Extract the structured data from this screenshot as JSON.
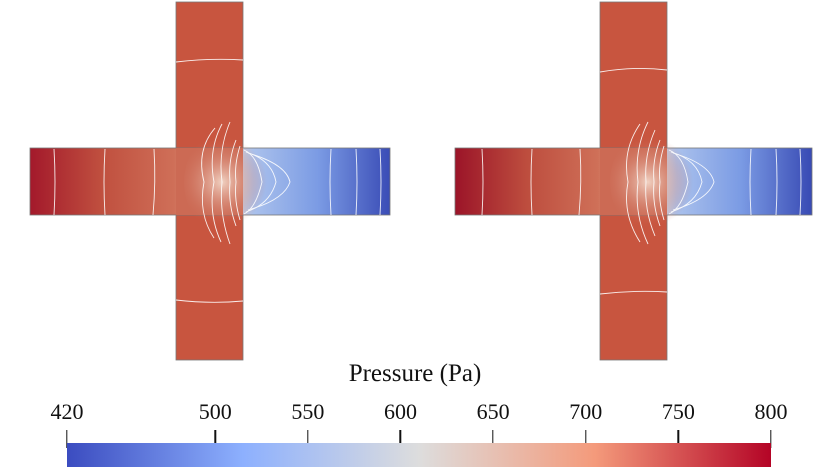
{
  "figure": {
    "panels": [
      {
        "name": "left-cross",
        "description": "pressure field in cross-shaped channel"
      },
      {
        "name": "right-cross",
        "description": "pressure field in cross-shaped channel"
      }
    ]
  },
  "colorbar": {
    "title": "Pressure (Pa)",
    "min": 420,
    "max": 800,
    "ticks": [
      {
        "value": 420,
        "label": "420"
      },
      {
        "value": 500,
        "label": "500"
      },
      {
        "value": 550,
        "label": "550"
      },
      {
        "value": 600,
        "label": "600"
      },
      {
        "value": 650,
        "label": "650"
      },
      {
        "value": 700,
        "label": "700"
      },
      {
        "value": 750,
        "label": "750"
      },
      {
        "value": 800,
        "label": "800"
      }
    ],
    "colors": {
      "low": "#3b4cc0",
      "low_mid": "#8db0fe",
      "mid": "#dddddd",
      "high_mid": "#f49a7b",
      "high": "#b40426"
    }
  }
}
